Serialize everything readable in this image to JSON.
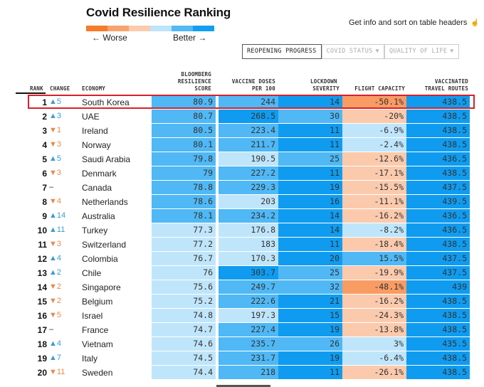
{
  "title": "Covid Resilience Ranking",
  "legend": {
    "worse_label": "← Worse",
    "better_label": "Better →",
    "scale_colors": [
      "#f57c2a",
      "#f8a26e",
      "#fbcbaf",
      "#bde4fa",
      "#52b9f5",
      "#129ff0"
    ]
  },
  "info_text": "Get info and sort on table headers",
  "info_icon": "pointer-hand-icon",
  "tabs": [
    {
      "label": "REOPENING PROGRESS",
      "active": true
    },
    {
      "label": "COVID STATUS",
      "active": false,
      "icon": "filter-arrow-icon"
    },
    {
      "label": "QUALITY OF LIFE",
      "active": false,
      "icon": "filter-arrow-icon"
    }
  ],
  "tab_arrow_glyph": "▼",
  "columns": {
    "rank": "RANK",
    "change": "CHANGE",
    "economy": "ECONOMY",
    "score": [
      "BLOOMBERG",
      "RESILIENCE",
      "SCORE"
    ],
    "vaccine": [
      "VACCINE DOSES",
      "PER 100"
    ],
    "lockdown": [
      "LOCKDOWN",
      "SEVERITY"
    ],
    "flight": "FLIGHT CAPACITY",
    "routes": [
      "VACCINATED",
      "TRAVEL ROUTES"
    ]
  },
  "colors": {
    "dark_blue": "#0f9cf0",
    "mid_blue": "#4fb8f5",
    "light_blue": "#bfe5fb",
    "light_orange": "#fbcaad",
    "mid_orange": "#f89c64",
    "highlight": "#d8202a"
  },
  "rows": [
    {
      "rank": "1",
      "change": "▲5",
      "dir": "up",
      "economy": "South Korea",
      "score": "80.9",
      "vaccine": "244",
      "lockdown": "14",
      "flight": "-50.1%",
      "routes": "438.5",
      "c": [
        "mid_blue",
        "mid_blue",
        "dark_blue",
        "mid_orange",
        "dark_blue"
      ]
    },
    {
      "rank": "2",
      "change": "▲3",
      "dir": "up",
      "economy": "UAE",
      "score": "80.7",
      "vaccine": "268.5",
      "lockdown": "30",
      "flight": "-20%",
      "routes": "438.5",
      "c": [
        "mid_blue",
        "dark_blue",
        "mid_blue",
        "light_orange",
        "dark_blue"
      ]
    },
    {
      "rank": "3",
      "change": "▼1",
      "dir": "down",
      "economy": "Ireland",
      "score": "80.5",
      "vaccine": "223.4",
      "lockdown": "11",
      "flight": "-6.9%",
      "routes": "438.5",
      "c": [
        "mid_blue",
        "mid_blue",
        "dark_blue",
        "light_blue",
        "dark_blue"
      ]
    },
    {
      "rank": "4",
      "change": "▼3",
      "dir": "down",
      "economy": "Norway",
      "score": "80.1",
      "vaccine": "211.7",
      "lockdown": "11",
      "flight": "-2.4%",
      "routes": "438.5",
      "c": [
        "mid_blue",
        "mid_blue",
        "dark_blue",
        "light_blue",
        "dark_blue"
      ]
    },
    {
      "rank": "5",
      "change": "▲5",
      "dir": "up",
      "economy": "Saudi Arabia",
      "score": "79.8",
      "vaccine": "190.5",
      "lockdown": "25",
      "flight": "-12.6%",
      "routes": "436.5",
      "c": [
        "mid_blue",
        "light_blue",
        "mid_blue",
        "light_orange",
        "dark_blue"
      ]
    },
    {
      "rank": "6",
      "change": "▼3",
      "dir": "down",
      "economy": "Denmark",
      "score": "79",
      "vaccine": "227.2",
      "lockdown": "11",
      "flight": "-17.1%",
      "routes": "438.5",
      "c": [
        "mid_blue",
        "mid_blue",
        "dark_blue",
        "light_orange",
        "dark_blue"
      ]
    },
    {
      "rank": "7",
      "change": "–",
      "dir": "flat",
      "economy": "Canada",
      "score": "78.8",
      "vaccine": "229.3",
      "lockdown": "19",
      "flight": "-15.5%",
      "routes": "437.5",
      "c": [
        "mid_blue",
        "mid_blue",
        "dark_blue",
        "light_orange",
        "dark_blue"
      ]
    },
    {
      "rank": "8",
      "change": "▼4",
      "dir": "down",
      "economy": "Netherlands",
      "score": "78.6",
      "vaccine": "203",
      "lockdown": "16",
      "flight": "-11.1%",
      "routes": "439.5",
      "c": [
        "mid_blue",
        "light_blue",
        "dark_blue",
        "light_orange",
        "dark_blue"
      ]
    },
    {
      "rank": "9",
      "change": "▲14",
      "dir": "up",
      "economy": "Australia",
      "score": "78.1",
      "vaccine": "234.2",
      "lockdown": "14",
      "flight": "-16.2%",
      "routes": "436.5",
      "c": [
        "mid_blue",
        "mid_blue",
        "dark_blue",
        "light_orange",
        "dark_blue"
      ]
    },
    {
      "rank": "10",
      "change": "▲11",
      "dir": "up",
      "economy": "Turkey",
      "score": "77.3",
      "vaccine": "176.8",
      "lockdown": "14",
      "flight": "-8.2%",
      "routes": "436.5",
      "c": [
        "light_blue",
        "light_blue",
        "dark_blue",
        "light_blue",
        "dark_blue"
      ]
    },
    {
      "rank": "11",
      "change": "▼3",
      "dir": "down",
      "economy": "Switzerland",
      "score": "77.2",
      "vaccine": "183",
      "lockdown": "11",
      "flight": "-18.4%",
      "routes": "438.5",
      "c": [
        "light_blue",
        "light_blue",
        "dark_blue",
        "light_orange",
        "dark_blue"
      ]
    },
    {
      "rank": "12",
      "change": "▲4",
      "dir": "up",
      "economy": "Colombia",
      "score": "76.7",
      "vaccine": "170.3",
      "lockdown": "20",
      "flight": "15.5%",
      "routes": "437.5",
      "c": [
        "light_blue",
        "light_blue",
        "dark_blue",
        "mid_blue",
        "dark_blue"
      ]
    },
    {
      "rank": "13",
      "change": "▲2",
      "dir": "up",
      "economy": "Chile",
      "score": "76",
      "vaccine": "303.7",
      "lockdown": "25",
      "flight": "-19.9%",
      "routes": "437.5",
      "c": [
        "light_blue",
        "dark_blue",
        "mid_blue",
        "light_orange",
        "dark_blue"
      ]
    },
    {
      "rank": "14",
      "change": "▼2",
      "dir": "down",
      "economy": "Singapore",
      "score": "75.6",
      "vaccine": "249.7",
      "lockdown": "32",
      "flight": "-48.1%",
      "routes": "439",
      "c": [
        "light_blue",
        "mid_blue",
        "mid_blue",
        "mid_orange",
        "dark_blue"
      ]
    },
    {
      "rank": "15",
      "change": "▼2",
      "dir": "down",
      "economy": "Belgium",
      "score": "75.2",
      "vaccine": "222.6",
      "lockdown": "21",
      "flight": "-16.2%",
      "routes": "438.5",
      "c": [
        "light_blue",
        "mid_blue",
        "dark_blue",
        "light_orange",
        "dark_blue"
      ]
    },
    {
      "rank": "16",
      "change": "▼5",
      "dir": "down",
      "economy": "Israel",
      "score": "74.8",
      "vaccine": "197.3",
      "lockdown": "15",
      "flight": "-24.3%",
      "routes": "438.5",
      "c": [
        "light_blue",
        "light_blue",
        "dark_blue",
        "light_orange",
        "dark_blue"
      ]
    },
    {
      "rank": "17",
      "change": "–",
      "dir": "flat",
      "economy": "France",
      "score": "74.7",
      "vaccine": "227.4",
      "lockdown": "19",
      "flight": "-13.8%",
      "routes": "438.5",
      "c": [
        "light_blue",
        "mid_blue",
        "dark_blue",
        "light_orange",
        "dark_blue"
      ]
    },
    {
      "rank": "18",
      "change": "▲4",
      "dir": "up",
      "economy": "Vietnam",
      "score": "74.6",
      "vaccine": "235.7",
      "lockdown": "26",
      "flight": "3%",
      "routes": "435.5",
      "c": [
        "light_blue",
        "mid_blue",
        "mid_blue",
        "light_blue",
        "dark_blue"
      ]
    },
    {
      "rank": "19",
      "change": "▲7",
      "dir": "up",
      "economy": "Italy",
      "score": "74.5",
      "vaccine": "231.7",
      "lockdown": "19",
      "flight": "-6.4%",
      "routes": "438.5",
      "c": [
        "light_blue",
        "mid_blue",
        "dark_blue",
        "light_blue",
        "dark_blue"
      ]
    },
    {
      "rank": "20",
      "change": "▼11",
      "dir": "down",
      "economy": "Sweden",
      "score": "74.4",
      "vaccine": "218",
      "lockdown": "11",
      "flight": "-26.1%",
      "routes": "438.5",
      "c": [
        "light_blue",
        "mid_blue",
        "dark_blue",
        "light_orange",
        "dark_blue"
      ]
    }
  ],
  "highlighted_row": 0
}
